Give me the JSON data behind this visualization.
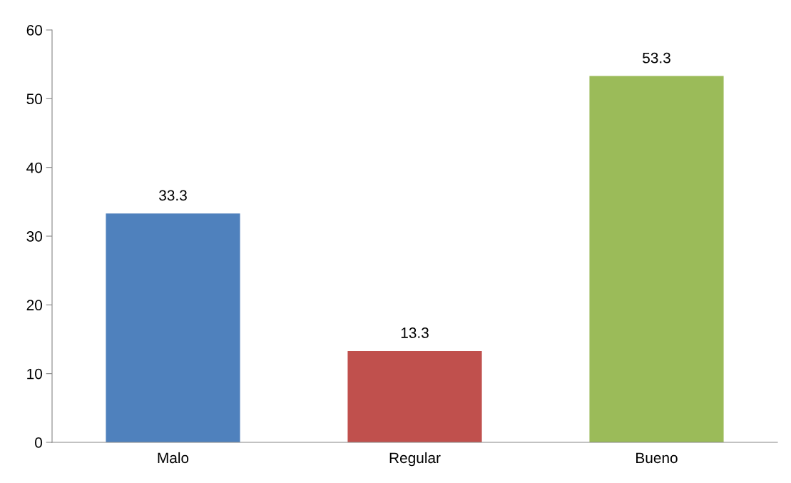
{
  "chart_data": {
    "type": "bar",
    "categories": [
      "Malo",
      "Regular",
      "Bueno"
    ],
    "values": [
      33.3,
      13.3,
      53.3
    ],
    "colors": [
      "#4f81bd",
      "#c0504d",
      "#9bbb59"
    ],
    "ylim": [
      0,
      60
    ],
    "yticks": [
      0,
      10,
      20,
      30,
      40,
      50,
      60
    ],
    "grid": false,
    "data_labels": true
  }
}
